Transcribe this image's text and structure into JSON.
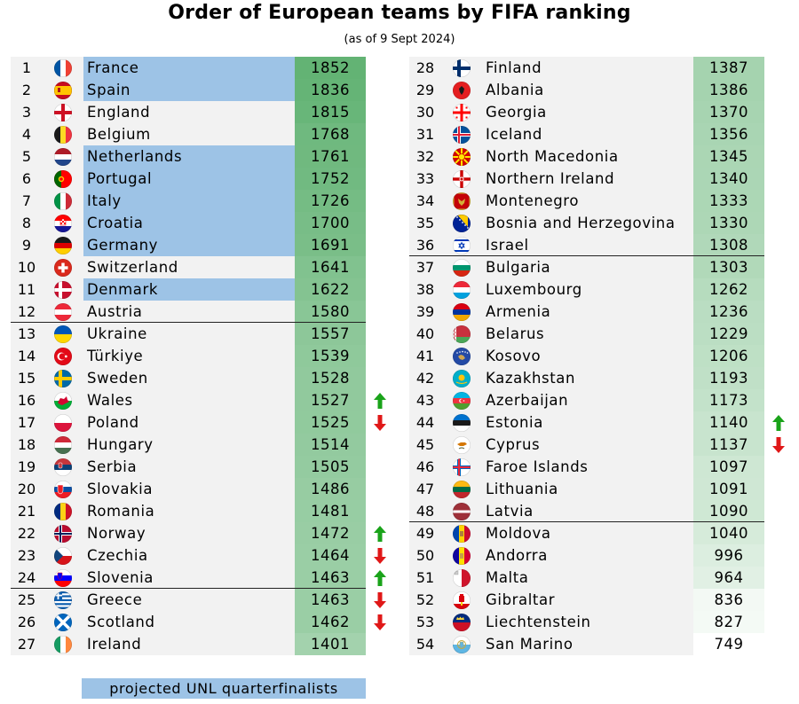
{
  "title": "Order of European teams by FIFA ranking",
  "subtitle": "(as of 9 Sept 2024)",
  "legend_label": "projected UNL quarterfinalists",
  "colors": {
    "quarterfinalist": "#9dc3e6",
    "row_bg": "#f2f2f2",
    "arrow_up": "#1aa31a",
    "arrow_down": "#e01818",
    "points_max": "#63b374",
    "points_min": "#ffffff"
  },
  "teams": [
    {
      "rank": "1",
      "name": "France",
      "points": "1852",
      "flag": "france-flag",
      "qf": true
    },
    {
      "rank": "2",
      "name": "Spain",
      "points": "1836",
      "flag": "spain-flag",
      "qf": true
    },
    {
      "rank": "3",
      "name": "England",
      "points": "1815",
      "flag": "england-flag",
      "qf": false
    },
    {
      "rank": "4",
      "name": "Belgium",
      "points": "1768",
      "flag": "belgium-flag",
      "qf": false
    },
    {
      "rank": "5",
      "name": "Netherlands",
      "points": "1761",
      "flag": "netherlands-flag",
      "qf": true
    },
    {
      "rank": "6",
      "name": "Portugal",
      "points": "1752",
      "flag": "portugal-flag",
      "qf": true
    },
    {
      "rank": "7",
      "name": "Italy",
      "points": "1726",
      "flag": "italy-flag",
      "qf": true
    },
    {
      "rank": "8",
      "name": "Croatia",
      "points": "1700",
      "flag": "croatia-flag",
      "qf": true
    },
    {
      "rank": "9",
      "name": "Germany",
      "points": "1691",
      "flag": "germany-flag",
      "qf": true
    },
    {
      "rank": "10",
      "name": "Switzerland",
      "points": "1641",
      "flag": "switzerland-flag",
      "qf": false
    },
    {
      "rank": "11",
      "name": "Denmark",
      "points": "1622",
      "flag": "denmark-flag",
      "qf": true
    },
    {
      "rank": "12",
      "name": "Austria",
      "points": "1580",
      "flag": "austria-flag",
      "qf": false,
      "divider": true
    },
    {
      "rank": "13",
      "name": "Ukraine",
      "points": "1557",
      "flag": "ukraine-flag",
      "qf": false
    },
    {
      "rank": "14",
      "name": "Türkiye",
      "points": "1539",
      "flag": "turkiye-flag",
      "qf": false
    },
    {
      "rank": "15",
      "name": "Sweden",
      "points": "1528",
      "flag": "sweden-flag",
      "qf": false
    },
    {
      "rank": "16",
      "name": "Wales",
      "points": "1527",
      "flag": "wales-flag",
      "qf": false,
      "arrow": "up"
    },
    {
      "rank": "17",
      "name": "Poland",
      "points": "1525",
      "flag": "poland-flag",
      "qf": false,
      "arrow": "down"
    },
    {
      "rank": "18",
      "name": "Hungary",
      "points": "1514",
      "flag": "hungary-flag",
      "qf": false
    },
    {
      "rank": "19",
      "name": "Serbia",
      "points": "1505",
      "flag": "serbia-flag",
      "qf": false
    },
    {
      "rank": "20",
      "name": "Slovakia",
      "points": "1486",
      "flag": "slovakia-flag",
      "qf": false
    },
    {
      "rank": "21",
      "name": "Romania",
      "points": "1481",
      "flag": "romania-flag",
      "qf": false
    },
    {
      "rank": "22",
      "name": "Norway",
      "points": "1472",
      "flag": "norway-flag",
      "qf": false,
      "arrow": "up"
    },
    {
      "rank": "23",
      "name": "Czechia",
      "points": "1464",
      "flag": "czechia-flag",
      "qf": false,
      "arrow": "down"
    },
    {
      "rank": "24",
      "name": "Slovenia",
      "points": "1463",
      "flag": "slovenia-flag",
      "qf": false,
      "arrow": "up",
      "divider": true
    },
    {
      "rank": "25",
      "name": "Greece",
      "points": "1463",
      "flag": "greece-flag",
      "qf": false,
      "arrow": "down"
    },
    {
      "rank": "26",
      "name": "Scotland",
      "points": "1462",
      "flag": "scotland-flag",
      "qf": false,
      "arrow": "down"
    },
    {
      "rank": "27",
      "name": "Ireland",
      "points": "1401",
      "flag": "ireland-flag",
      "qf": false
    },
    {
      "rank": "28",
      "name": "Finland",
      "points": "1387",
      "flag": "finland-flag",
      "qf": false
    },
    {
      "rank": "29",
      "name": "Albania",
      "points": "1386",
      "flag": "albania-flag",
      "qf": false
    },
    {
      "rank": "30",
      "name": "Georgia",
      "points": "1370",
      "flag": "georgia-flag",
      "qf": false
    },
    {
      "rank": "31",
      "name": "Iceland",
      "points": "1356",
      "flag": "iceland-flag",
      "qf": false
    },
    {
      "rank": "32",
      "name": "North Macedonia",
      "points": "1345",
      "flag": "north-macedonia-flag",
      "qf": false
    },
    {
      "rank": "33",
      "name": "Northern Ireland",
      "points": "1340",
      "flag": "northern-ireland-flag",
      "qf": false
    },
    {
      "rank": "34",
      "name": "Montenegro",
      "points": "1333",
      "flag": "montenegro-flag",
      "qf": false
    },
    {
      "rank": "35",
      "name": "Bosnia and Herzegovina",
      "points": "1330",
      "flag": "bosnia-flag",
      "qf": false
    },
    {
      "rank": "36",
      "name": "Israel",
      "points": "1308",
      "flag": "israel-flag",
      "qf": false,
      "divider": true
    },
    {
      "rank": "37",
      "name": "Bulgaria",
      "points": "1303",
      "flag": "bulgaria-flag",
      "qf": false
    },
    {
      "rank": "38",
      "name": "Luxembourg",
      "points": "1262",
      "flag": "luxembourg-flag",
      "qf": false
    },
    {
      "rank": "39",
      "name": "Armenia",
      "points": "1236",
      "flag": "armenia-flag",
      "qf": false
    },
    {
      "rank": "40",
      "name": "Belarus",
      "points": "1229",
      "flag": "belarus-flag",
      "qf": false
    },
    {
      "rank": "41",
      "name": "Kosovo",
      "points": "1206",
      "flag": "kosovo-flag",
      "qf": false
    },
    {
      "rank": "42",
      "name": "Kazakhstan",
      "points": "1193",
      "flag": "kazakhstan-flag",
      "qf": false
    },
    {
      "rank": "43",
      "name": "Azerbaijan",
      "points": "1173",
      "flag": "azerbaijan-flag",
      "qf": false
    },
    {
      "rank": "44",
      "name": "Estonia",
      "points": "1140",
      "flag": "estonia-flag",
      "qf": false,
      "arrow": "up"
    },
    {
      "rank": "45",
      "name": "Cyprus",
      "points": "1137",
      "flag": "cyprus-flag",
      "qf": false,
      "arrow": "down"
    },
    {
      "rank": "46",
      "name": "Faroe Islands",
      "points": "1097",
      "flag": "faroe-flag",
      "qf": false
    },
    {
      "rank": "47",
      "name": "Lithuania",
      "points": "1091",
      "flag": "lithuania-flag",
      "qf": false
    },
    {
      "rank": "48",
      "name": "Latvia",
      "points": "1090",
      "flag": "latvia-flag",
      "qf": false,
      "divider": true
    },
    {
      "rank": "49",
      "name": "Moldova",
      "points": "1040",
      "flag": "moldova-flag",
      "qf": false
    },
    {
      "rank": "50",
      "name": "Andorra",
      "points": "996",
      "flag": "andorra-flag",
      "qf": false
    },
    {
      "rank": "51",
      "name": "Malta",
      "points": "964",
      "flag": "malta-flag",
      "qf": false
    },
    {
      "rank": "52",
      "name": "Gibraltar",
      "points": "836",
      "flag": "gibraltar-flag",
      "qf": false
    },
    {
      "rank": "53",
      "name": "Liechtenstein",
      "points": "827",
      "flag": "liechtenstein-flag",
      "qf": false
    },
    {
      "rank": "54",
      "name": "San Marino",
      "points": "749",
      "flag": "san-marino-flag",
      "qf": false
    }
  ]
}
